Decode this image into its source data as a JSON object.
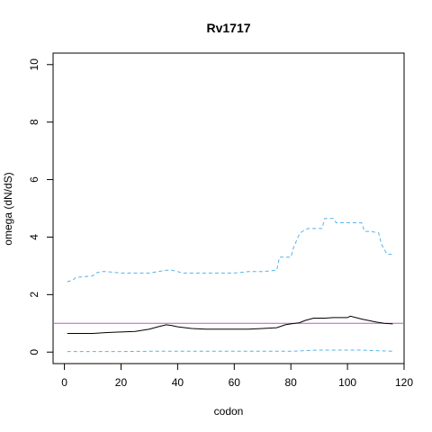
{
  "chart_data": {
    "type": "line",
    "title": "Rv1717",
    "xlabel": "codon",
    "ylabel": "omega (dN/dS)",
    "xlim": [
      -4,
      120
    ],
    "ylim": [
      -0.4,
      10.4
    ],
    "xticks": [
      0,
      20,
      40,
      60,
      80,
      100,
      120
    ],
    "yticks": [
      0,
      2,
      4,
      6,
      8,
      10
    ],
    "reference_line": {
      "y": 1,
      "color": "#c05ec0"
    },
    "grid": false,
    "series": [
      {
        "style": "dashed",
        "color": "#56b4e9",
        "x": [
          1,
          3,
          4,
          10,
          11,
          13,
          15,
          20,
          25,
          30,
          33,
          36,
          38,
          40,
          42,
          45,
          50,
          55,
          60,
          65,
          70,
          75,
          76,
          80,
          81,
          83,
          84,
          86,
          88,
          91,
          92,
          95,
          96,
          99,
          105,
          106,
          108,
          111,
          112,
          114,
          116
        ],
        "y": [
          2.45,
          2.5,
          2.6,
          2.65,
          2.75,
          2.8,
          2.8,
          2.75,
          2.75,
          2.75,
          2.8,
          2.85,
          2.85,
          2.8,
          2.75,
          2.75,
          2.75,
          2.75,
          2.75,
          2.8,
          2.8,
          2.85,
          3.3,
          3.3,
          3.65,
          4.1,
          4.2,
          4.3,
          4.3,
          4.3,
          4.65,
          4.65,
          4.5,
          4.5,
          4.5,
          4.2,
          4.2,
          4.15,
          3.75,
          3.4,
          3.4
        ]
      },
      {
        "style": "solid",
        "color": "#000000",
        "x": [
          1,
          5,
          10,
          15,
          20,
          25,
          30,
          33,
          36,
          38,
          40,
          45,
          50,
          55,
          60,
          65,
          70,
          75,
          78,
          80,
          83,
          85,
          88,
          92,
          95,
          100,
          101,
          105,
          110,
          113,
          116
        ],
        "y": [
          0.65,
          0.65,
          0.65,
          0.68,
          0.7,
          0.72,
          0.8,
          0.88,
          0.95,
          0.92,
          0.88,
          0.82,
          0.8,
          0.8,
          0.8,
          0.8,
          0.82,
          0.85,
          0.95,
          0.98,
          1.02,
          1.1,
          1.18,
          1.18,
          1.2,
          1.2,
          1.25,
          1.15,
          1.05,
          1.0,
          0.98
        ]
      },
      {
        "style": "dashed",
        "color": "#56b4e9",
        "x": [
          1,
          10,
          20,
          30,
          40,
          50,
          60,
          70,
          80,
          85,
          90,
          95,
          100,
          105,
          110,
          116
        ],
        "y": [
          0.02,
          0.02,
          0.02,
          0.03,
          0.03,
          0.03,
          0.03,
          0.03,
          0.03,
          0.05,
          0.07,
          0.07,
          0.07,
          0.07,
          0.05,
          0.03
        ]
      }
    ]
  }
}
